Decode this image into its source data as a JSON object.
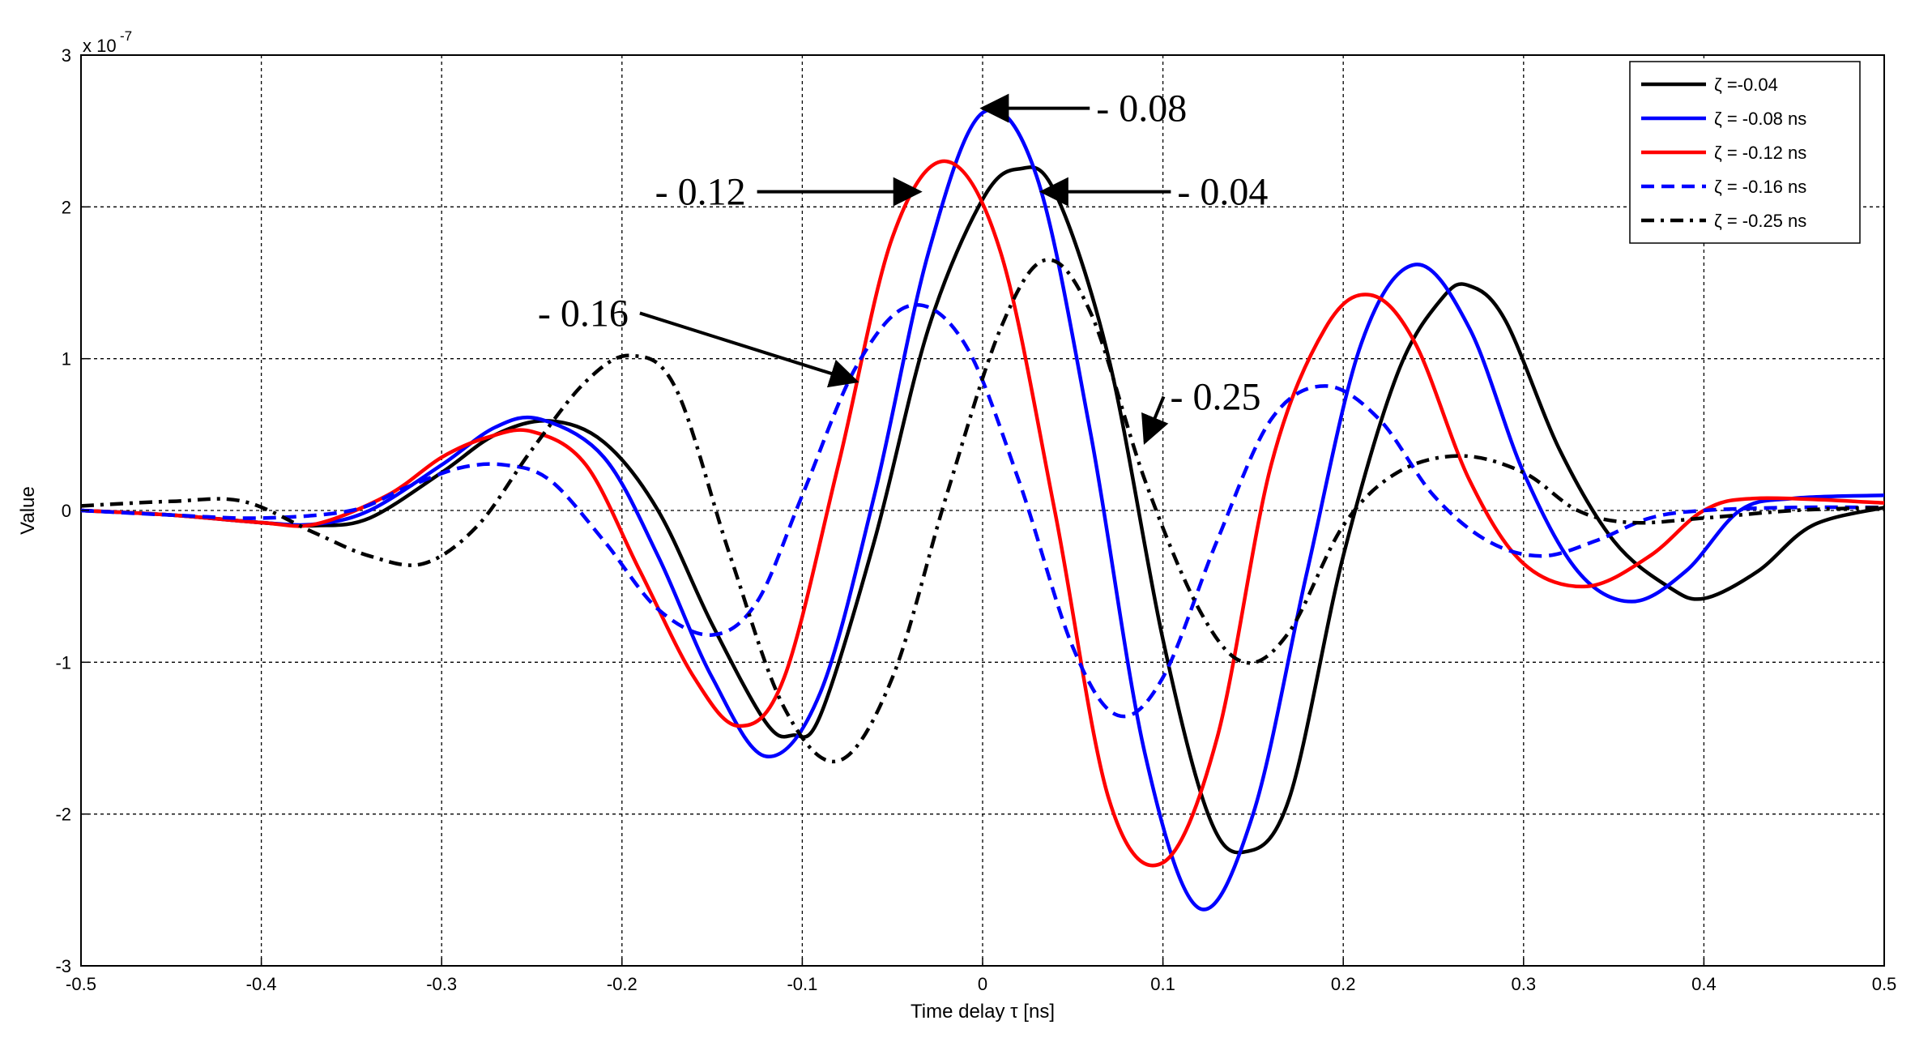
{
  "chart_data": {
    "type": "line",
    "title": "",
    "xlabel": "Time delay τ [ns]",
    "ylabel": "Value",
    "y_multiplier": "x 10",
    "y_exponent": "-7",
    "xlim": [
      -0.5,
      0.5
    ],
    "ylim": [
      -3,
      3
    ],
    "x_ticks": [
      -0.5,
      -0.4,
      -0.3,
      -0.2,
      -0.1,
      0,
      0.1,
      0.2,
      0.3,
      0.4,
      0.5
    ],
    "x_tick_labels": [
      "-0.5",
      "-0.4",
      "-0.3",
      "-0.2",
      "-0.1",
      "0",
      "0.1",
      "0.2",
      "0.3",
      "0.4",
      "0.5"
    ],
    "y_ticks": [
      -3,
      -2,
      -1,
      0,
      1,
      2,
      3
    ],
    "y_tick_labels": [
      "-3",
      "-2",
      "-1",
      "0",
      "1",
      "2",
      "3"
    ],
    "grid": true,
    "legend_position": "top-right",
    "series": [
      {
        "name": "ζ =-0.04",
        "color": "#000000",
        "style": "solid",
        "x": [
          -0.5,
          -0.45,
          -0.4,
          -0.37,
          -0.34,
          -0.3,
          -0.27,
          -0.24,
          -0.21,
          -0.18,
          -0.15,
          -0.12,
          -0.105,
          -0.09,
          -0.06,
          -0.03,
          0,
          0.02,
          0.04,
          0.07,
          0.1,
          0.125,
          0.145,
          0.17,
          0.2,
          0.23,
          0.255,
          0.27,
          0.29,
          0.32,
          0.35,
          0.38,
          0.4,
          0.43,
          0.46,
          0.5
        ],
        "y": [
          0,
          -0.03,
          -0.08,
          -0.1,
          -0.05,
          0.25,
          0.5,
          0.59,
          0.45,
          0.0,
          -0.75,
          -1.4,
          -1.48,
          -1.35,
          -0.2,
          1.2,
          2.05,
          2.25,
          2.1,
          1.0,
          -0.85,
          -2.0,
          -2.25,
          -1.9,
          -0.3,
          0.9,
          1.4,
          1.48,
          1.25,
          0.4,
          -0.2,
          -0.5,
          -0.58,
          -0.4,
          -0.1,
          0.02
        ]
      },
      {
        "name": "ζ = -0.08 ns",
        "color": "#0000ff",
        "style": "solid",
        "x": [
          -0.5,
          -0.45,
          -0.4,
          -0.37,
          -0.34,
          -0.3,
          -0.27,
          -0.245,
          -0.21,
          -0.18,
          -0.15,
          -0.12,
          -0.09,
          -0.06,
          -0.03,
          0,
          0.03,
          0.06,
          0.09,
          0.12,
          0.15,
          0.18,
          0.21,
          0.24,
          0.27,
          0.3,
          0.33,
          0.36,
          0.39,
          0.42,
          0.45,
          0.5
        ],
        "y": [
          0,
          -0.03,
          -0.08,
          -0.09,
          0.0,
          0.3,
          0.55,
          0.6,
          0.35,
          -0.3,
          -1.1,
          -1.62,
          -1.2,
          0.1,
          1.7,
          2.62,
          2.2,
          0.5,
          -1.6,
          -2.62,
          -2.0,
          -0.4,
          1.1,
          1.62,
          1.2,
          0.25,
          -0.4,
          -0.6,
          -0.4,
          0.0,
          0.08,
          0.1
        ]
      },
      {
        "name": "ζ = -0.12 ns",
        "color": "#ff0000",
        "style": "solid",
        "x": [
          -0.5,
          -0.45,
          -0.4,
          -0.37,
          -0.33,
          -0.3,
          -0.275,
          -0.25,
          -0.22,
          -0.19,
          -0.16,
          -0.135,
          -0.11,
          -0.08,
          -0.05,
          -0.02,
          0.01,
          0.04,
          0.07,
          0.1,
          0.13,
          0.16,
          0.19,
          0.215,
          0.24,
          0.27,
          0.3,
          0.335,
          0.37,
          0.4,
          0.43,
          0.5
        ],
        "y": [
          0,
          -0.03,
          -0.08,
          -0.09,
          0.1,
          0.35,
          0.48,
          0.52,
          0.3,
          -0.4,
          -1.1,
          -1.42,
          -1.1,
          0.3,
          1.8,
          2.3,
          1.7,
          0.0,
          -1.9,
          -2.32,
          -1.5,
          0.3,
          1.2,
          1.42,
          1.1,
          0.2,
          -0.35,
          -0.5,
          -0.3,
          0.0,
          0.08,
          0.05
        ]
      },
      {
        "name": "ζ = -0.16 ns",
        "color": "#0000ff",
        "style": "dashed",
        "x": [
          -0.5,
          -0.45,
          -0.4,
          -0.35,
          -0.32,
          -0.29,
          -0.265,
          -0.24,
          -0.21,
          -0.18,
          -0.15,
          -0.125,
          -0.1,
          -0.07,
          -0.04,
          -0.01,
          0.02,
          0.05,
          0.075,
          0.1,
          0.13,
          0.16,
          0.19,
          0.22,
          0.25,
          0.28,
          0.31,
          0.34,
          0.37,
          0.4,
          0.45,
          0.5
        ],
        "y": [
          0,
          -0.03,
          -0.05,
          0.0,
          0.15,
          0.28,
          0.3,
          0.2,
          -0.2,
          -0.65,
          -0.82,
          -0.6,
          0.1,
          0.95,
          1.35,
          1.1,
          0.2,
          -0.9,
          -1.35,
          -1.1,
          -0.2,
          0.6,
          0.82,
          0.6,
          0.1,
          -0.2,
          -0.3,
          -0.2,
          -0.05,
          0.0,
          0.02,
          0.02
        ]
      },
      {
        "name": "ζ = -0.25 ns",
        "color": "#000000",
        "style": "dashdot",
        "x": [
          -0.5,
          -0.45,
          -0.41,
          -0.37,
          -0.34,
          -0.31,
          -0.28,
          -0.25,
          -0.22,
          -0.195,
          -0.17,
          -0.14,
          -0.11,
          -0.08,
          -0.05,
          -0.02,
          0.01,
          0.035,
          0.06,
          0.09,
          0.12,
          0.145,
          0.17,
          0.2,
          0.23,
          0.265,
          0.3,
          0.33,
          0.36,
          0.4,
          0.45,
          0.5
        ],
        "y": [
          0.03,
          0.06,
          0.06,
          -0.15,
          -0.3,
          -0.35,
          -0.1,
          0.4,
          0.85,
          1.02,
          0.8,
          -0.3,
          -1.3,
          -1.65,
          -1.1,
          0.1,
          1.2,
          1.65,
          1.3,
          0.2,
          -0.65,
          -1.0,
          -0.8,
          -0.1,
          0.25,
          0.36,
          0.25,
          0.0,
          -0.08,
          -0.05,
          0.0,
          0.02
        ]
      }
    ],
    "annotations": [
      {
        "text": "- 0.08",
        "x": 0.0,
        "y": 2.65,
        "text_x": 0.063,
        "text_y": 2.65
      },
      {
        "text": "- 0.12",
        "x": -0.035,
        "y": 2.1,
        "text_x": -0.17,
        "text_y": 2.1
      },
      {
        "text": "- 0.04",
        "x": 0.033,
        "y": 2.1,
        "text_x": 0.108,
        "text_y": 2.1
      },
      {
        "text": "- 0.16",
        "x": -0.07,
        "y": 0.85,
        "text_x": -0.235,
        "text_y": 1.3
      },
      {
        "text": "- 0.25",
        "x": 0.09,
        "y": 0.45,
        "text_x": 0.104,
        "text_y": 0.75
      }
    ]
  }
}
